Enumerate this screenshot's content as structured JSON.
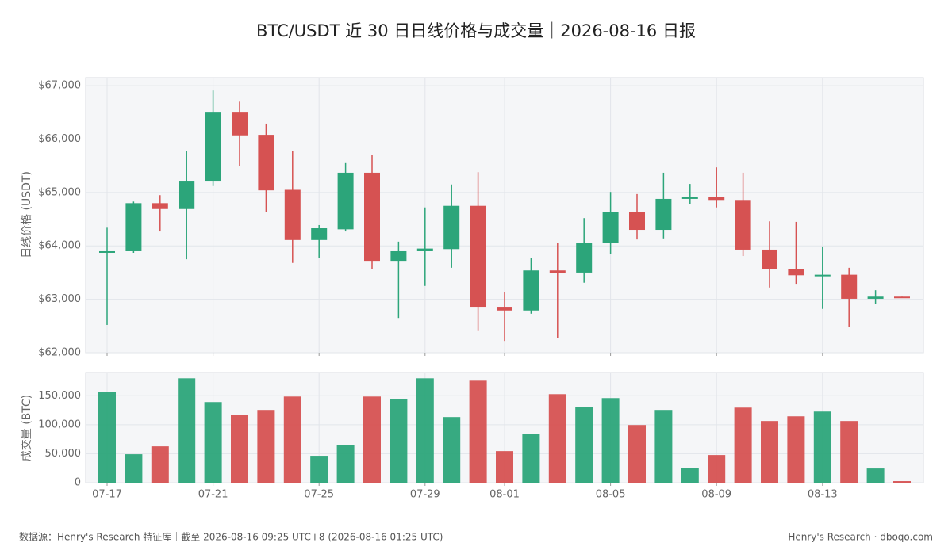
{
  "title": "BTC/USDT 近 30 日日线价格与成交量｜2026-08-16 日报",
  "footer_left": "数据源：Henry's Research 特征库｜截至 2026-08-16 09:25 UTC+8 (2026-08-16 01:25 UTC)",
  "footer_right": "Henry's Research · dboqo.com",
  "chart_data": [
    {
      "type": "candlestick",
      "ylabel": "日线价格 (USDT)",
      "up_color": "#2ca57a",
      "down_color": "#d65252",
      "open": [
        63890,
        63900,
        64800,
        64690,
        65220,
        66510,
        66080,
        65050,
        64110,
        64310,
        65370,
        63720,
        63900,
        63940,
        64750,
        62860,
        62790,
        63540,
        63500,
        64060,
        64630,
        64300,
        64880,
        64920,
        64860,
        63930,
        63570,
        63450,
        63460,
        63010,
        63050
      ],
      "high": [
        64340,
        64830,
        64950,
        65780,
        66910,
        66700,
        66290,
        65780,
        64390,
        65550,
        65710,
        64080,
        64720,
        65150,
        65380,
        63130,
        63780,
        64060,
        64520,
        65010,
        64970,
        65370,
        65160,
        65470,
        65370,
        64460,
        64450,
        63990,
        63590,
        63170,
        63050
      ],
      "low": [
        62520,
        63870,
        64270,
        63750,
        65120,
        65500,
        64630,
        63680,
        63770,
        64270,
        63560,
        62650,
        63250,
        63590,
        62420,
        62220,
        62730,
        62270,
        63310,
        63850,
        64120,
        64140,
        64790,
        64720,
        63810,
        63220,
        63290,
        62820,
        62490,
        62910,
        63030
      ],
      "close": [
        63900,
        64800,
        64690,
        65220,
        66510,
        66070,
        65040,
        64110,
        64330,
        65370,
        63720,
        63900,
        63950,
        64750,
        62860,
        62790,
        63540,
        63490,
        64060,
        64630,
        64300,
        64880,
        64920,
        64860,
        63930,
        63570,
        63450,
        63460,
        63010,
        63050,
        63030
      ],
      "ylim": [
        62000,
        67150
      ],
      "yticks": [
        {
          "value": 62000,
          "label": "$62,000"
        },
        {
          "value": 63000,
          "label": "$63,000"
        },
        {
          "value": 64000,
          "label": "$64,000"
        },
        {
          "value": 65000,
          "label": "$65,000"
        },
        {
          "value": 66000,
          "label": "$66,000"
        },
        {
          "value": 67000,
          "label": "$67,000"
        }
      ],
      "grid": true
    },
    {
      "type": "bar",
      "ylabel": "成交量 (BTC)",
      "categories": [
        "07-17",
        null,
        null,
        null,
        "07-21",
        null,
        null,
        null,
        "07-25",
        null,
        null,
        null,
        "07-29",
        null,
        null,
        "08-01",
        null,
        null,
        null,
        "08-05",
        null,
        null,
        null,
        "08-09",
        null,
        null,
        null,
        "08-13",
        null,
        null,
        null
      ],
      "values": [
        156800,
        49100,
        62700,
        180000,
        139100,
        117300,
        125500,
        148600,
        46400,
        65500,
        148600,
        144500,
        180000,
        113200,
        175900,
        54500,
        84500,
        152700,
        130900,
        145900,
        99500,
        125500,
        25900,
        47700,
        129500,
        106400,
        114500,
        122700,
        106400,
        24500,
        2700
      ],
      "ylim": [
        0,
        190000
      ],
      "yticks": [
        0,
        {
          "value": 50000,
          "label": "50,000"
        },
        {
          "value": 100000,
          "label": "100,000"
        },
        {
          "value": 150000,
          "label": "150,000"
        }
      ],
      "grid": true
    }
  ]
}
